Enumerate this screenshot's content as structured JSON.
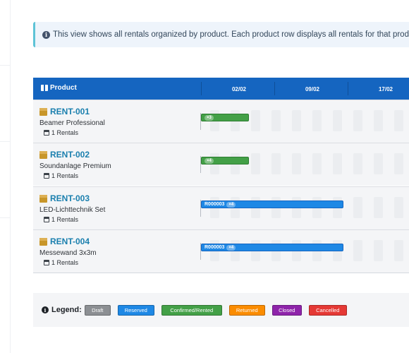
{
  "banner": {
    "text": "This view shows all rentals organized by product. Each product row displays all rentals for that produ"
  },
  "grid": {
    "header": {
      "product_label": "Product",
      "dates": [
        "02/02",
        "09/02",
        "17/02"
      ]
    },
    "rows": [
      {
        "code": "RENT-001",
        "name": "Beamer Professional",
        "count": "1 Rentals",
        "bar": {
          "status": "confirmed",
          "label": "",
          "badge": "×3"
        }
      },
      {
        "code": "RENT-002",
        "name": "Soundanlage Premium",
        "count": "1 Rentals",
        "bar": {
          "status": "confirmed",
          "label": "",
          "badge": "×4"
        }
      },
      {
        "code": "RENT-003",
        "name": "LED-Lichttechnik Set",
        "count": "1 Rentals",
        "bar": {
          "status": "reserved",
          "label": "R000003",
          "badge": "×4"
        }
      },
      {
        "code": "RENT-004",
        "name": "Messewand 3x3m",
        "count": "1 Rentals",
        "bar": {
          "status": "reserved",
          "label": "R000003",
          "badge": "×4"
        }
      }
    ]
  },
  "legend": {
    "label": "Legend:",
    "items": [
      {
        "label": "Draft",
        "color": "#8c8f93"
      },
      {
        "label": "Reserved",
        "color": "#1e88e5"
      },
      {
        "label": "Confirmed/Rented",
        "color": "#43a047"
      },
      {
        "label": "Returned",
        "color": "#fb8c00"
      },
      {
        "label": "Closed",
        "color": "#8e24aa"
      },
      {
        "label": "Cancelled",
        "color": "#e53935"
      }
    ]
  },
  "colors": {
    "header_bg": "#1565c0",
    "accent_text": "#1a7fae",
    "confirmed": "#43a047",
    "reserved": "#1e88e5"
  }
}
